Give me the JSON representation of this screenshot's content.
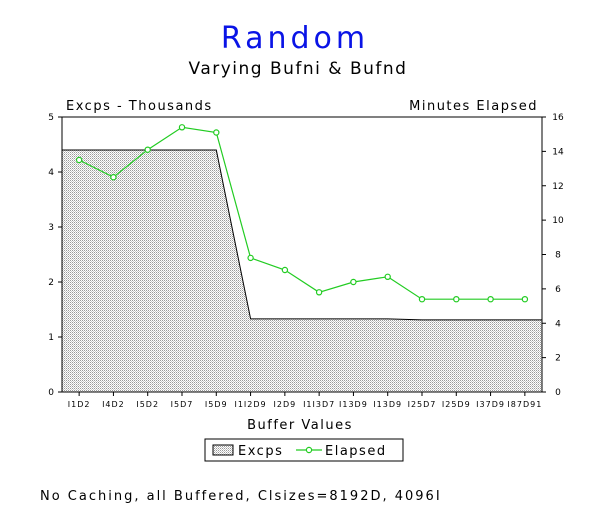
{
  "chart_data": {
    "type": "area",
    "title": "Random",
    "subtitle": "Varying Bufni & Bufnd",
    "ylabel_left": "Excps - Thousands",
    "ylabel_right": "Minutes Elapsed",
    "xlabel": "Buffer Values",
    "footnote": "No Caching, all Buffered, Clsizes=8192D, 4096I",
    "categories": [
      "I1D2",
      "I4D2",
      "I5D2",
      "I5D7",
      "I5D9",
      "I1I2D9",
      "I2D9",
      "I1I3D7",
      "I13D9",
      "I13D9",
      "I25D7",
      "I25D9",
      "I37D9",
      "I87D91"
    ],
    "ylim_left": [
      0,
      5
    ],
    "ylim_right": [
      0,
      16
    ],
    "yticks_left": [
      0,
      1,
      2,
      3,
      4,
      5
    ],
    "yticks_right": [
      0,
      2,
      4,
      6,
      8,
      10,
      12,
      14,
      16
    ],
    "grid": false,
    "legend_position": "bottom-center",
    "series": [
      {
        "name": "Excps",
        "axis": "left",
        "style": "area",
        "color": "#000000",
        "values": [
          4.4,
          4.4,
          4.4,
          4.4,
          4.4,
          1.33,
          1.33,
          1.33,
          1.33,
          1.33,
          1.31,
          1.31,
          1.31,
          1.31
        ]
      },
      {
        "name": "Elapsed",
        "axis": "right",
        "style": "line-markers",
        "color": "#22cc22",
        "values": [
          13.5,
          12.5,
          14.1,
          15.4,
          15.1,
          7.8,
          7.1,
          5.8,
          6.4,
          6.7,
          5.4,
          5.4,
          5.4,
          5.4
        ]
      }
    ]
  }
}
